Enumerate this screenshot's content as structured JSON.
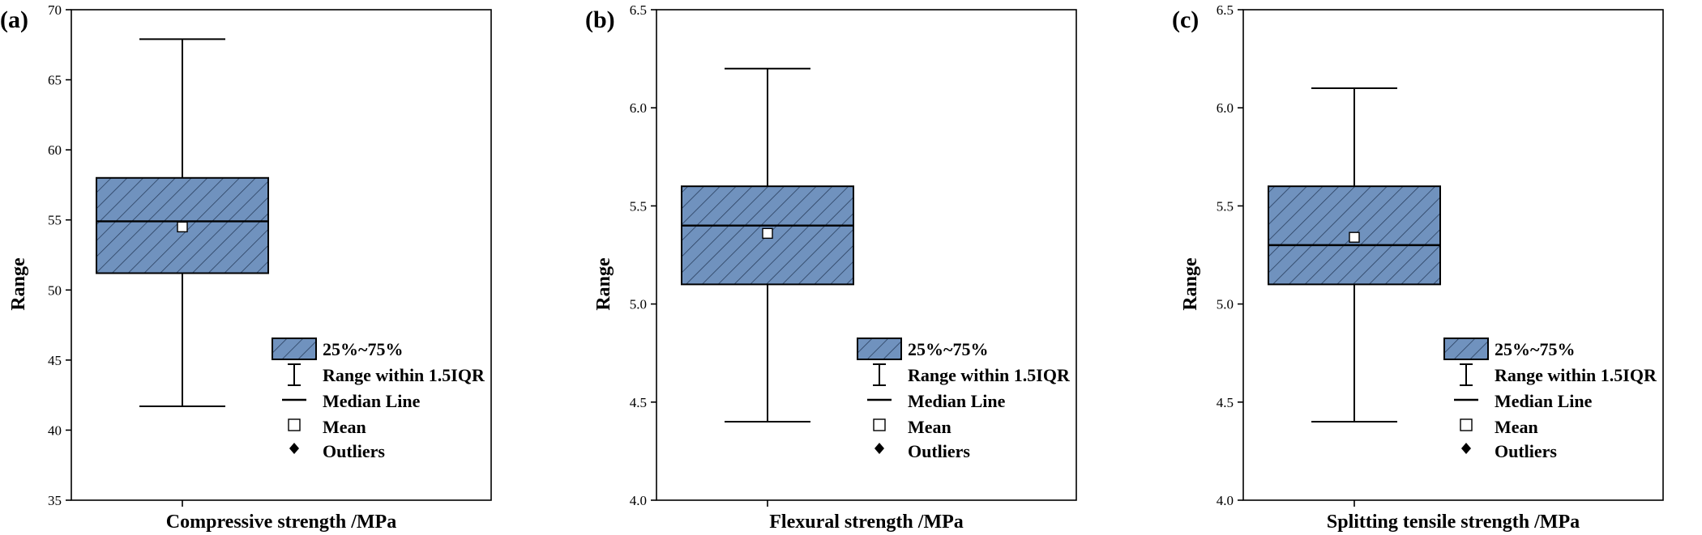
{
  "chart_data": [
    {
      "type": "box",
      "panel_label": "(a)",
      "xlabel": "Compressive strength /MPa",
      "ylabel": "Range",
      "ylim": [
        35,
        70
      ],
      "yticks": [
        35,
        40,
        45,
        50,
        55,
        60,
        65,
        70
      ],
      "ytick_labels": [
        "35",
        "40",
        "45",
        "50",
        "55",
        "60",
        "65",
        "70"
      ],
      "box": {
        "whisker_low": 41.7,
        "q1": 51.2,
        "median": 54.9,
        "q3": 58.0,
        "whisker_high": 67.9,
        "mean": 54.5
      },
      "outliers": []
    },
    {
      "type": "box",
      "panel_label": "(b)",
      "xlabel": "Flexural strength /MPa",
      "ylabel": "Range",
      "ylim": [
        4.0,
        6.5
      ],
      "yticks": [
        4.0,
        4.5,
        5.0,
        5.5,
        6.0,
        6.5
      ],
      "ytick_labels": [
        "4.0",
        "4.5",
        "5.0",
        "5.5",
        "6.0",
        "6.5"
      ],
      "box": {
        "whisker_low": 4.4,
        "q1": 5.1,
        "median": 5.4,
        "q3": 5.6,
        "whisker_high": 6.2,
        "mean": 5.36
      },
      "outliers": []
    },
    {
      "type": "box",
      "panel_label": "(c)",
      "xlabel": "Splitting tensile strength /MPa",
      "ylabel": "Range",
      "ylim": [
        4.0,
        6.5
      ],
      "yticks": [
        4.0,
        4.5,
        5.0,
        5.5,
        6.0,
        6.5
      ],
      "ytick_labels": [
        "4.0",
        "4.5",
        "5.0",
        "5.5",
        "6.0",
        "6.5"
      ],
      "box": {
        "whisker_low": 4.4,
        "q1": 5.1,
        "median": 5.3,
        "q3": 5.6,
        "whisker_high": 6.1,
        "mean": 5.34
      },
      "outliers": []
    }
  ],
  "legend": {
    "items": [
      "25%~75%",
      "Range within 1.5IQR",
      "Median Line",
      "Mean",
      "Outliers"
    ]
  },
  "colors": {
    "box_fill": "#7092be",
    "hatch": "#2a3f5f",
    "line": "#000000"
  }
}
